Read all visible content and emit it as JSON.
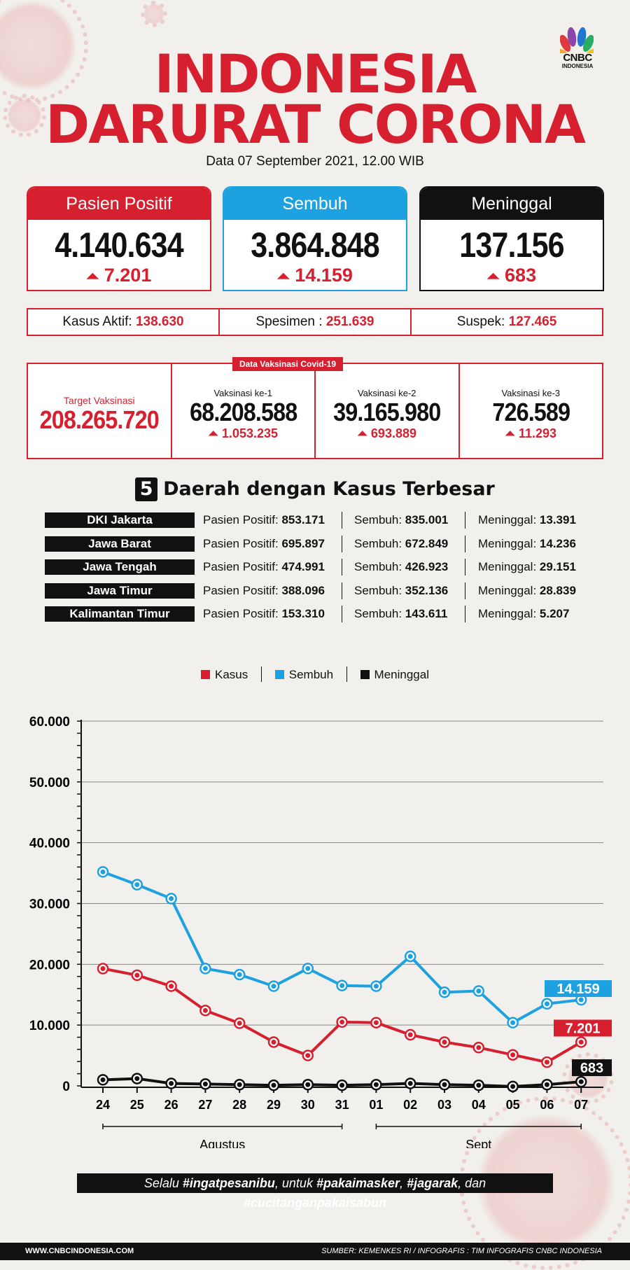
{
  "header": {
    "title_line1": "INDONESIA",
    "title_line2": "DARURAT CORONA",
    "date": "Data 07 September 2021, 12.00 WIB",
    "logo_text": "CNBC",
    "logo_sub": "INDONESIA"
  },
  "cards": [
    {
      "label": "Pasien Positif",
      "value": "4.140.634",
      "delta": "7.201",
      "color": "#d6202f"
    },
    {
      "label": "Sembuh",
      "value": "3.864.848",
      "delta": "14.159",
      "color": "#1da1e0"
    },
    {
      "label": "Meninggal",
      "value": "137.156",
      "delta": "683",
      "color": "#111111"
    }
  ],
  "stats": [
    {
      "label": "Kasus Aktif:",
      "value": "138.630"
    },
    {
      "label": "Spesimen :",
      "value": "251.639"
    },
    {
      "label": "Suspek:",
      "value": "127.465"
    }
  ],
  "vaccination": {
    "tag": "Data Vaksinasi Covid-19",
    "target_label": "Target Vaksinasi",
    "target_value": "208.265.720",
    "doses": [
      {
        "label": "Vaksinasi ke-1",
        "value": "68.208.588",
        "delta": "1.053.235"
      },
      {
        "label": "Vaksinasi ke-2",
        "value": "39.165.980",
        "delta": "693.889"
      },
      {
        "label": "Vaksinasi ke-3",
        "value": "726.589",
        "delta": "11.293"
      }
    ]
  },
  "regions_section": {
    "number": "5",
    "title": "Daerah dengan Kasus Terbesar",
    "rows": [
      {
        "name": "DKI Jakarta",
        "positif": "853.171",
        "sembuh": "835.001",
        "meninggal": "13.391"
      },
      {
        "name": "Jawa Barat",
        "positif": "695.897",
        "sembuh": "672.849",
        "meninggal": "14.236"
      },
      {
        "name": "Jawa Tengah",
        "positif": "474.991",
        "sembuh": "426.923",
        "meninggal": "29.151"
      },
      {
        "name": "Jawa Timur",
        "positif": "388.096",
        "sembuh": "352.136",
        "meninggal": "28.839"
      },
      {
        "name": "Kalimantan Timur",
        "positif": "153.310",
        "sembuh": "143.611",
        "meninggal": "5.207"
      }
    ],
    "label_positif": "Pasien Positif:",
    "label_sembuh": "Sembuh:",
    "label_meninggal": "Meninggal:"
  },
  "chart_data": {
    "type": "line",
    "categories": [
      "24",
      "25",
      "26",
      "27",
      "28",
      "29",
      "30",
      "31",
      "01",
      "02",
      "03",
      "04",
      "05",
      "06",
      "07"
    ],
    "groups": [
      {
        "label": "Agustus",
        "from": "24",
        "to": "31"
      },
      {
        "label": "Sept",
        "from": "01",
        "to": "07"
      }
    ],
    "series": [
      {
        "name": "Kasus",
        "color": "#d6202f",
        "values": [
          19290,
          18200,
          16400,
          12400,
          10300,
          7200,
          5000,
          10500,
          10400,
          8400,
          7200,
          6300,
          5100,
          3900,
          7201
        ],
        "end_label": "7.201"
      },
      {
        "name": "Sembuh",
        "color": "#1da1e0",
        "values": [
          35200,
          33100,
          30800,
          19300,
          18300,
          16400,
          19300,
          16500,
          16400,
          21300,
          15400,
          15600,
          10400,
          13500,
          14159
        ],
        "end_label": "14.159"
      },
      {
        "name": "Meninggal",
        "color": "#111111",
        "values": [
          1000,
          1200,
          400,
          300,
          200,
          100,
          200,
          100,
          200,
          400,
          200,
          100,
          -100,
          200,
          683
        ],
        "end_label": "683"
      }
    ],
    "ylim": [
      0,
      60000
    ],
    "yticks": [
      0,
      10000,
      20000,
      30000,
      40000,
      50000,
      60000
    ],
    "ytick_labels": [
      "0",
      "10.000",
      "20.000",
      "30.000",
      "40.000",
      "50.000",
      "60.000"
    ],
    "grid": true,
    "legend": "top-center"
  },
  "footer": {
    "slogan_parts": [
      "Selalu ",
      "#ingatpesanibu",
      ", untuk ",
      "#pakaimasker",
      ", ",
      "#jagarak",
      ", dan ",
      "#cucitanganpakaisabun"
    ],
    "site": "WWW.CNBCINDONESIA.COM",
    "source": "SUMBER: KEMENKES RI / INFOGRAFIS : TIM INFOGRAFIS CNBC INDONESIA"
  }
}
